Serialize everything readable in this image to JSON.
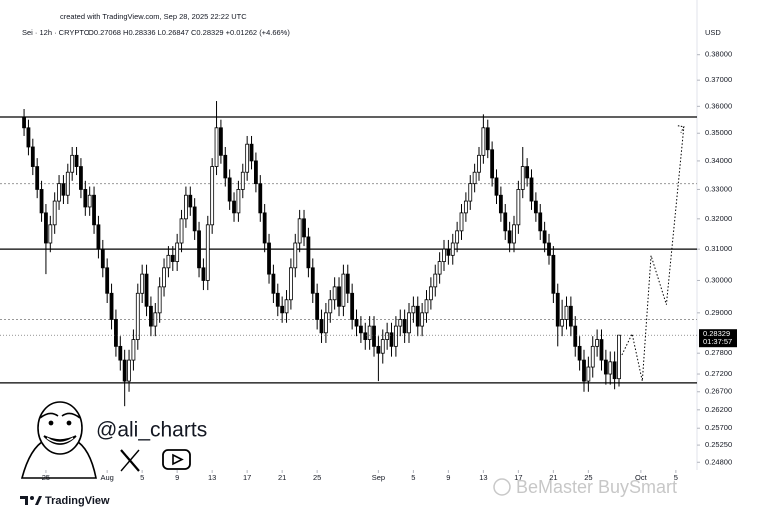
{
  "chart_data": {
    "type": "candlestick",
    "header": "created with TradingView.com, Sep 28, 2025 22:22 UTC",
    "symbol": "Sei · 12h · CRYPTO",
    "ohlc_legend": "O0.27068 H0.28336 L0.26847 C0.28329 +0.01262 (+4.66%)",
    "currency": "USD",
    "countdown": "01:37:57",
    "author": "@ali_charts",
    "brand": "TradingView",
    "watermark": "BeMaster BuySmart",
    "log_scale": true,
    "up_color": "#ffffff",
    "down_color": "#000000",
    "xlim": [
      "Jul 19 18:00",
      "Oct 7 10:00"
    ],
    "xticks": [
      {
        "value": "Jul 25",
        "label": "25"
      },
      {
        "value": "Aug 1",
        "label": "Aug"
      },
      {
        "value": "Aug 5",
        "label": "5"
      },
      {
        "value": "Aug 9",
        "label": "9"
      },
      {
        "value": "Aug 13",
        "label": "13"
      },
      {
        "value": "Aug 17",
        "label": "17"
      },
      {
        "value": "Aug 21",
        "label": "21"
      },
      {
        "value": "Aug 25",
        "label": "25"
      },
      {
        "value": "Sep 1",
        "label": "Sep"
      },
      {
        "value": "Sep 5",
        "label": "5"
      },
      {
        "value": "Sep 9",
        "label": "9"
      },
      {
        "value": "Sep 13",
        "label": "13"
      },
      {
        "value": "Sep 17",
        "label": "17"
      },
      {
        "value": "Sep 21",
        "label": "21"
      },
      {
        "value": "Sep 25",
        "label": "25"
      },
      {
        "value": "Oct 1",
        "label": "Oct"
      },
      {
        "value": "Oct 5",
        "label": "5"
      }
    ],
    "ylim": [
      0.246,
      0.392
    ],
    "yticks": [
      {
        "value": 0.38,
        "label": "0.38000"
      },
      {
        "value": 0.37,
        "label": "0.37000"
      },
      {
        "value": 0.36,
        "label": "0.36000"
      },
      {
        "value": 0.35,
        "label": "0.35000"
      },
      {
        "value": 0.34,
        "label": "0.34000"
      },
      {
        "value": 0.33,
        "label": "0.33000"
      },
      {
        "value": 0.32,
        "label": "0.32000"
      },
      {
        "value": 0.31,
        "label": "0.31000"
      },
      {
        "value": 0.3,
        "label": "0.30000"
      },
      {
        "value": 0.29,
        "label": "0.29000"
      },
      {
        "value": 0.278,
        "label": "0.27800"
      },
      {
        "value": 0.272,
        "label": "0.27200"
      },
      {
        "value": 0.267,
        "label": "0.26700"
      },
      {
        "value": 0.262,
        "label": "0.26200"
      },
      {
        "value": 0.257,
        "label": "0.25700"
      },
      {
        "value": 0.2525,
        "label": "0.25250"
      },
      {
        "value": 0.248,
        "label": "0.24800"
      }
    ],
    "levels": [
      {
        "value": 0.356,
        "style": "solid"
      },
      {
        "value": 0.332,
        "style": "dotted"
      },
      {
        "value": 0.31,
        "style": "solid"
      },
      {
        "value": 0.288,
        "style": "dotted"
      },
      {
        "value": 0.2695,
        "style": "solid"
      }
    ],
    "projection": {
      "x": [
        "Sep 28 20:00",
        "Sep 30 00:00",
        "Oct 1 04:00",
        "Oct 2 04:00",
        "Oct 3 22:00",
        "Oct 5 22:00"
      ],
      "values": [
        0.2775,
        0.2837,
        0.27,
        0.3079,
        0.2925,
        0.3524
      ]
    },
    "x": [
      "Jul 22 12:00",
      "Jul 23 00:00",
      "Jul 23 12:00",
      "Jul 24 00:00",
      "Jul 24 12:00",
      "Jul 25 00:00",
      "Jul 25 12:00",
      "Jul 26 00:00",
      "Jul 26 12:00",
      "Jul 27 00:00",
      "Jul 27 12:00",
      "Jul 28 00:00",
      "Jul 28 12:00",
      "Jul 29 00:00",
      "Jul 29 12:00",
      "Jul 30 00:00",
      "Jul 30 12:00",
      "Jul 31 00:00",
      "Jul 31 12:00",
      "Aug 1 00:00",
      "Aug 1 12:00",
      "Aug 2 00:00",
      "Aug 2 12:00",
      "Aug 3 00:00",
      "Aug 3 12:00",
      "Aug 4 00:00",
      "Aug 4 12:00",
      "Aug 5 00:00",
      "Aug 5 12:00",
      "Aug 6 00:00",
      "Aug 6 12:00",
      "Aug 7 00:00",
      "Aug 7 12:00",
      "Aug 8 00:00",
      "Aug 8 12:00",
      "Aug 9 00:00",
      "Aug 9 12:00",
      "Aug 10 00:00",
      "Aug 10 12:00",
      "Aug 11 00:00",
      "Aug 11 12:00",
      "Aug 12 00:00",
      "Aug 12 12:00",
      "Aug 13 00:00",
      "Aug 13 12:00",
      "Aug 14 00:00",
      "Aug 14 12:00",
      "Aug 15 00:00",
      "Aug 15 12:00",
      "Aug 16 00:00",
      "Aug 16 12:00",
      "Aug 17 00:00",
      "Aug 17 12:00",
      "Aug 18 00:00",
      "Aug 18 12:00",
      "Aug 19 00:00",
      "Aug 19 12:00",
      "Aug 20 00:00",
      "Aug 20 12:00",
      "Aug 21 00:00",
      "Aug 21 12:00",
      "Aug 22 00:00",
      "Aug 22 12:00",
      "Aug 23 00:00",
      "Aug 23 12:00",
      "Aug 24 00:00",
      "Aug 24 12:00",
      "Aug 25 00:00",
      "Aug 25 12:00",
      "Aug 26 00:00",
      "Aug 26 12:00",
      "Aug 27 00:00",
      "Aug 27 12:00",
      "Aug 28 00:00",
      "Aug 28 12:00",
      "Aug 29 00:00",
      "Aug 29 12:00",
      "Aug 30 00:00",
      "Aug 30 12:00",
      "Aug 31 00:00",
      "Aug 31 12:00",
      "Sep 1 00:00",
      "Sep 1 12:00",
      "Sep 2 00:00",
      "Sep 2 12:00",
      "Sep 3 00:00",
      "Sep 3 12:00",
      "Sep 4 00:00",
      "Sep 4 12:00",
      "Sep 5 00:00",
      "Sep 5 12:00",
      "Sep 6 00:00",
      "Sep 6 12:00",
      "Sep 7 00:00",
      "Sep 7 12:00",
      "Sep 8 00:00",
      "Sep 8 12:00",
      "Sep 9 00:00",
      "Sep 9 12:00",
      "Sep 10 00:00",
      "Sep 10 12:00",
      "Sep 11 00:00",
      "Sep 11 12:00",
      "Sep 12 00:00",
      "Sep 12 12:00",
      "Sep 13 00:00",
      "Sep 13 12:00",
      "Sep 14 00:00",
      "Sep 14 12:00",
      "Sep 15 00:00",
      "Sep 15 12:00",
      "Sep 16 00:00",
      "Sep 16 12:00",
      "Sep 17 00:00",
      "Sep 17 12:00",
      "Sep 18 00:00",
      "Sep 18 12:00",
      "Sep 19 00:00",
      "Sep 19 12:00",
      "Sep 20 00:00",
      "Sep 20 12:00",
      "Sep 21 00:00",
      "Sep 21 12:00",
      "Sep 22 00:00",
      "Sep 22 12:00",
      "Sep 23 00:00",
      "Sep 23 12:00",
      "Sep 24 00:00",
      "Sep 24 12:00",
      "Sep 25 00:00",
      "Sep 25 12:00",
      "Sep 26 00:00",
      "Sep 26 12:00",
      "Sep 27 00:00",
      "Sep 27 12:00",
      "Sep 28 00:00",
      "Sep 28 12:00"
    ],
    "open": [
      0.356,
      0.352,
      0.345,
      0.338,
      0.33,
      0.322,
      0.312,
      0.318,
      0.326,
      0.332,
      0.328,
      0.336,
      0.342,
      0.338,
      0.33,
      0.324,
      0.328,
      0.318,
      0.31,
      0.304,
      0.296,
      0.288,
      0.28,
      0.276,
      0.27,
      0.276,
      0.282,
      0.296,
      0.302,
      0.292,
      0.286,
      0.29,
      0.298,
      0.304,
      0.308,
      0.306,
      0.312,
      0.32,
      0.328,
      0.324,
      0.316,
      0.304,
      0.3,
      0.318,
      0.338,
      0.352,
      0.342,
      0.334,
      0.326,
      0.322,
      0.33,
      0.336,
      0.346,
      0.34,
      0.332,
      0.322,
      0.312,
      0.302,
      0.296,
      0.292,
      0.29,
      0.294,
      0.304,
      0.312,
      0.32,
      0.314,
      0.304,
      0.296,
      0.288,
      0.284,
      0.29,
      0.294,
      0.298,
      0.292,
      0.302,
      0.296,
      0.288,
      0.286,
      0.284,
      0.282,
      0.286,
      0.28,
      0.278,
      0.282,
      0.284,
      0.28,
      0.286,
      0.288,
      0.284,
      0.29,
      0.292,
      0.286,
      0.29,
      0.294,
      0.298,
      0.302,
      0.306,
      0.31,
      0.308,
      0.312,
      0.316,
      0.322,
      0.326,
      0.332,
      0.336,
      0.342,
      0.352,
      0.344,
      0.334,
      0.328,
      0.322,
      0.316,
      0.312,
      0.318,
      0.33,
      0.338,
      0.334,
      0.326,
      0.322,
      0.316,
      0.312,
      0.308,
      0.296,
      0.286,
      0.288,
      0.292,
      0.286,
      0.28,
      0.276,
      0.27,
      0.274,
      0.28,
      0.282,
      0.276,
      0.272,
      0.2755,
      0.27068
    ],
    "high": [
      0.359,
      0.355,
      0.348,
      0.341,
      0.333,
      0.325,
      0.321,
      0.329,
      0.335,
      0.335,
      0.339,
      0.345,
      0.345,
      0.341,
      0.333,
      0.331,
      0.331,
      0.321,
      0.313,
      0.307,
      0.299,
      0.291,
      0.283,
      0.279,
      0.279,
      0.285,
      0.299,
      0.305,
      0.305,
      0.295,
      0.293,
      0.301,
      0.307,
      0.311,
      0.311,
      0.315,
      0.323,
      0.331,
      0.331,
      0.327,
      0.319,
      0.307,
      0.321,
      0.341,
      0.362,
      0.355,
      0.345,
      0.337,
      0.329,
      0.333,
      0.339,
      0.349,
      0.349,
      0.343,
      0.335,
      0.325,
      0.315,
      0.305,
      0.299,
      0.295,
      0.297,
      0.307,
      0.315,
      0.323,
      0.323,
      0.317,
      0.307,
      0.299,
      0.291,
      0.293,
      0.297,
      0.301,
      0.301,
      0.305,
      0.305,
      0.299,
      0.291,
      0.289,
      0.287,
      0.289,
      0.289,
      0.283,
      0.285,
      0.287,
      0.287,
      0.289,
      0.291,
      0.291,
      0.293,
      0.295,
      0.295,
      0.293,
      0.297,
      0.301,
      0.305,
      0.309,
      0.313,
      0.313,
      0.315,
      0.319,
      0.325,
      0.329,
      0.335,
      0.339,
      0.345,
      0.357,
      0.355,
      0.347,
      0.337,
      0.331,
      0.325,
      0.319,
      0.321,
      0.333,
      0.345,
      0.341,
      0.337,
      0.329,
      0.325,
      0.319,
      0.315,
      0.311,
      0.299,
      0.294,
      0.295,
      0.295,
      0.289,
      0.283,
      0.279,
      0.277,
      0.283,
      0.285,
      0.285,
      0.279,
      0.2785,
      0.2785,
      0.28336
    ],
    "low": [
      0.349,
      0.342,
      0.335,
      0.327,
      0.319,
      0.302,
      0.309,
      0.315,
      0.323,
      0.325,
      0.325,
      0.333,
      0.335,
      0.327,
      0.321,
      0.321,
      0.315,
      0.307,
      0.301,
      0.293,
      0.285,
      0.277,
      0.273,
      0.263,
      0.267,
      0.273,
      0.279,
      0.293,
      0.289,
      0.283,
      0.283,
      0.287,
      0.295,
      0.301,
      0.303,
      0.303,
      0.309,
      0.317,
      0.321,
      0.313,
      0.301,
      0.297,
      0.297,
      0.315,
      0.335,
      0.339,
      0.331,
      0.323,
      0.319,
      0.319,
      0.327,
      0.333,
      0.337,
      0.329,
      0.319,
      0.309,
      0.299,
      0.293,
      0.289,
      0.287,
      0.287,
      0.291,
      0.301,
      0.309,
      0.311,
      0.301,
      0.293,
      0.285,
      0.281,
      0.281,
      0.287,
      0.291,
      0.289,
      0.289,
      0.293,
      0.285,
      0.283,
      0.281,
      0.279,
      0.279,
      0.277,
      0.27,
      0.275,
      0.279,
      0.277,
      0.277,
      0.283,
      0.281,
      0.281,
      0.287,
      0.283,
      0.283,
      0.287,
      0.291,
      0.295,
      0.299,
      0.303,
      0.305,
      0.305,
      0.309,
      0.313,
      0.319,
      0.323,
      0.329,
      0.333,
      0.339,
      0.341,
      0.331,
      0.325,
      0.319,
      0.313,
      0.309,
      0.309,
      0.315,
      0.327,
      0.331,
      0.323,
      0.319,
      0.313,
      0.309,
      0.305,
      0.293,
      0.28,
      0.283,
      0.285,
      0.283,
      0.277,
      0.273,
      0.267,
      0.267,
      0.271,
      0.277,
      0.273,
      0.269,
      0.269,
      0.2677,
      0.26847
    ],
    "close": [
      0.352,
      0.345,
      0.338,
      0.33,
      0.322,
      0.312,
      0.318,
      0.326,
      0.332,
      0.328,
      0.336,
      0.342,
      0.338,
      0.33,
      0.324,
      0.328,
      0.318,
      0.31,
      0.304,
      0.296,
      0.288,
      0.28,
      0.276,
      0.27,
      0.276,
      0.282,
      0.296,
      0.302,
      0.292,
      0.286,
      0.29,
      0.298,
      0.304,
      0.308,
      0.306,
      0.312,
      0.32,
      0.328,
      0.324,
      0.316,
      0.304,
      0.3,
      0.318,
      0.338,
      0.352,
      0.342,
      0.334,
      0.326,
      0.322,
      0.33,
      0.336,
      0.346,
      0.34,
      0.332,
      0.322,
      0.312,
      0.302,
      0.296,
      0.292,
      0.29,
      0.294,
      0.304,
      0.312,
      0.32,
      0.314,
      0.304,
      0.296,
      0.288,
      0.284,
      0.29,
      0.294,
      0.298,
      0.292,
      0.302,
      0.296,
      0.288,
      0.286,
      0.284,
      0.282,
      0.286,
      0.28,
      0.278,
      0.282,
      0.284,
      0.28,
      0.286,
      0.288,
      0.284,
      0.29,
      0.292,
      0.286,
      0.29,
      0.294,
      0.298,
      0.302,
      0.306,
      0.31,
      0.308,
      0.312,
      0.316,
      0.322,
      0.326,
      0.332,
      0.336,
      0.342,
      0.352,
      0.344,
      0.334,
      0.328,
      0.322,
      0.316,
      0.312,
      0.318,
      0.33,
      0.338,
      0.334,
      0.326,
      0.322,
      0.316,
      0.312,
      0.308,
      0.296,
      0.286,
      0.288,
      0.292,
      0.286,
      0.28,
      0.276,
      0.27,
      0.274,
      0.28,
      0.282,
      0.276,
      0.272,
      0.2755,
      0.27068,
      0.28329
    ]
  }
}
